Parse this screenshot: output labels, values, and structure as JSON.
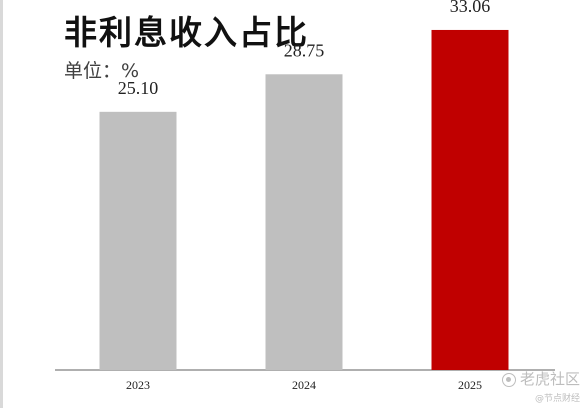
{
  "title": "非利息收入占比",
  "unit_label": "单位：%",
  "watermark": {
    "main": "老虎社区",
    "sub": "@节点财经"
  },
  "colors": {
    "default_bar": "#bfbfbf",
    "highlight_bar": "#c00000",
    "axis": "#7f7f7f"
  },
  "chart_data": {
    "type": "bar",
    "categories": [
      "2023",
      "2024",
      "2025"
    ],
    "values": [
      25.1,
      28.75,
      33.06
    ],
    "value_labels": [
      "25.10",
      "28.75",
      "33.06"
    ],
    "highlight_index": 2,
    "title": "非利息收入占比",
    "unit": "%",
    "ylim": [
      0,
      35
    ],
    "grid": false,
    "legend": "none"
  }
}
